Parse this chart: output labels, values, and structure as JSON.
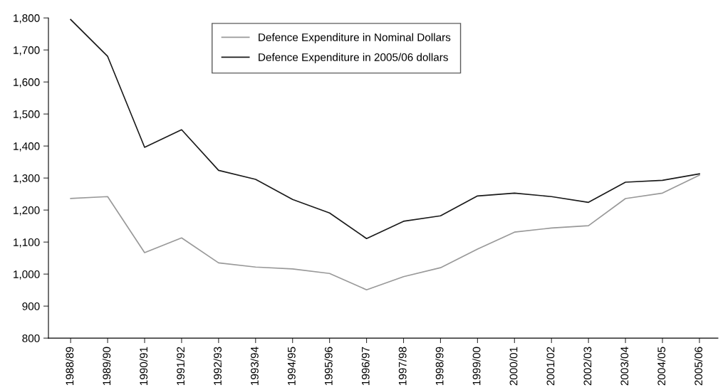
{
  "chart_data": {
    "type": "line",
    "categories": [
      "1988/89",
      "1989/90",
      "1990/91",
      "1991/92",
      "1992/93",
      "1993/94",
      "1994/95",
      "1995/96",
      "1996/97",
      "1997/98",
      "1998/99",
      "1999/00",
      "2000/01",
      "2001/02",
      "2002/03",
      "2003/04",
      "2004/05",
      "2005/06"
    ],
    "series": [
      {
        "name": "Defence Expenditure in Nominal Dollars",
        "color": "#999999",
        "values": [
          1236,
          1242,
          1067,
          1113,
          1035,
          1022,
          1016,
          1002,
          951,
          992,
          1020,
          1078,
          1131,
          1144,
          1151,
          1236,
          1253,
          1309
        ]
      },
      {
        "name": "Defence Expenditure in 2005/06 dollars",
        "color": "#1a1a1a",
        "values": [
          1795,
          1680,
          1396,
          1451,
          1324,
          1296,
          1233,
          1191,
          1111,
          1165,
          1182,
          1244,
          1253,
          1242,
          1224,
          1287,
          1293,
          1313
        ]
      }
    ],
    "ylim": [
      800,
      1800
    ],
    "yticks": [
      {
        "value": 800,
        "label": "800"
      },
      {
        "value": 900,
        "label": "900"
      },
      {
        "value": 1000,
        "label": "1,000"
      },
      {
        "value": 1100,
        "label": "1,100"
      },
      {
        "value": 1200,
        "label": "1,200"
      },
      {
        "value": 1300,
        "label": "1,300"
      },
      {
        "value": 1400,
        "label": "1,400"
      },
      {
        "value": 1500,
        "label": "1,500"
      },
      {
        "value": 1600,
        "label": "1,600"
      },
      {
        "value": 1700,
        "label": "1,700"
      },
      {
        "value": 1800,
        "label": "1,800"
      }
    ],
    "grid": false,
    "legend": "top",
    "marker": "none",
    "line_style": "solid"
  }
}
